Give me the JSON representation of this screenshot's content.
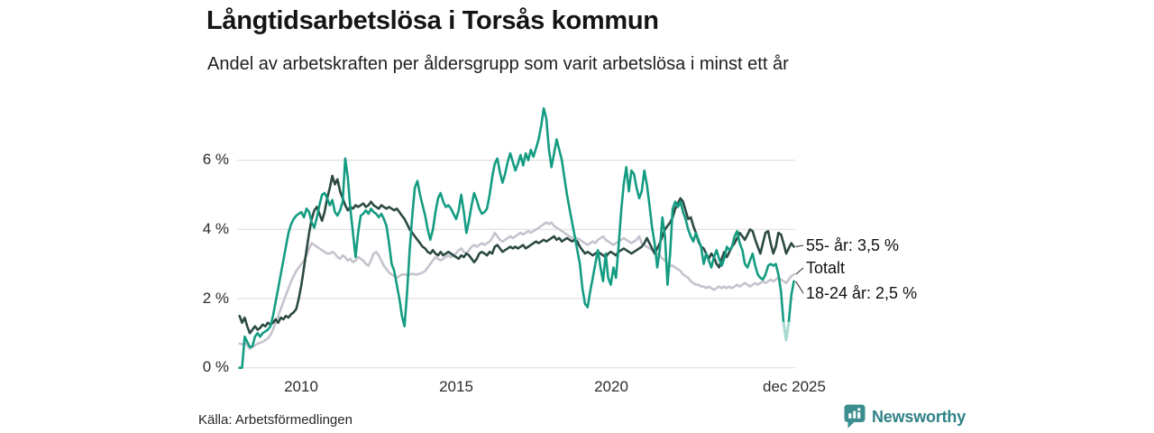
{
  "title": "Långtidsarbetslösa i Torsås kommun",
  "subtitle": "Andel av arbetskraften per åldersgrupp som varit arbetslösa i minst ett år",
  "source": "Källa: Arbetsförmedlingen",
  "branding": {
    "logo_text": "Newsworthy",
    "logo_icon": "bar-chart-speech-bubble-icon",
    "brand_color": "#2e8186",
    "icon_color": "#3b8d8f"
  },
  "colors": {
    "background": "#ffffff",
    "grid": "#e0e0e0",
    "tick_text": "#2b2b2b",
    "connector": "#4a4a4a",
    "series_55": "#2c4a43",
    "series_total": "#c5c3ce",
    "series_1824": "#149c82",
    "series_1824_recent": "#a9dbd2"
  },
  "chart_data": {
    "type": "line",
    "title": "Långtidsarbetslösa i Torsås kommun",
    "subtitle": "Andel av arbetskraften per åldersgrupp som varit arbetslösa i minst ett år",
    "x_interval": "monthly",
    "x_start_year": 2008,
    "x_end_label": "dec 2025",
    "ylim": [
      0,
      7.8
    ],
    "grid": "horizontal",
    "legend_position": "end-of-line-labels",
    "y_ticks": [
      {
        "label": "0 %",
        "value": 0
      },
      {
        "label": "2 %",
        "value": 2
      },
      {
        "label": "4 %",
        "value": 4
      },
      {
        "label": "6 %",
        "value": 6
      }
    ],
    "x_ticks": [
      {
        "label": "2010",
        "year": 2010
      },
      {
        "label": "2015",
        "year": 2015
      },
      {
        "label": "2020",
        "year": 2020
      },
      {
        "label": "dec 2025",
        "year": 2025.917
      }
    ],
    "series": [
      {
        "name": "55- år",
        "end_label": "55- år: 3,5 %",
        "end_value_text": "3,5 %",
        "color": "#2c4a43",
        "values": [
          1.5,
          1.3,
          1.45,
          1.2,
          1.0,
          1.1,
          1.2,
          1.1,
          1.15,
          1.25,
          1.2,
          1.3,
          1.25,
          1.3,
          1.4,
          1.3,
          1.45,
          1.4,
          1.5,
          1.45,
          1.55,
          1.6,
          1.7,
          2.0,
          2.4,
          2.9,
          3.4,
          3.9,
          4.3,
          4.55,
          4.65,
          4.45,
          4.25,
          4.5,
          4.9,
          5.2,
          5.55,
          5.3,
          5.45,
          5.1,
          4.9,
          4.7,
          4.55,
          4.65,
          4.6,
          4.7,
          4.65,
          4.7,
          4.75,
          4.65,
          4.7,
          4.8,
          4.7,
          4.65,
          4.6,
          4.7,
          4.65,
          4.6,
          4.65,
          4.6,
          4.55,
          4.6,
          4.5,
          4.4,
          4.3,
          4.15,
          4.0,
          3.9,
          3.8,
          3.7,
          3.6,
          3.5,
          3.45,
          3.35,
          3.3,
          3.4,
          3.3,
          3.25,
          3.35,
          3.25,
          3.3,
          3.35,
          3.3,
          3.25,
          3.2,
          3.15,
          3.25,
          3.2,
          3.3,
          3.25,
          3.15,
          3.05,
          3.15,
          3.3,
          3.35,
          3.3,
          3.25,
          3.35,
          3.3,
          3.5,
          3.55,
          3.45,
          3.35,
          3.4,
          3.45,
          3.5,
          3.45,
          3.5,
          3.45,
          3.5,
          3.55,
          3.45,
          3.5,
          3.55,
          3.6,
          3.65,
          3.6,
          3.65,
          3.7,
          3.65,
          3.7,
          3.75,
          3.8,
          3.7,
          3.75,
          3.65,
          3.7,
          3.75,
          3.7,
          3.65,
          3.7,
          3.65,
          3.5,
          3.4,
          3.3,
          3.35,
          3.3,
          3.25,
          3.3,
          3.35,
          3.3,
          3.25,
          3.2,
          3.3,
          3.35,
          3.3,
          3.25,
          3.35,
          3.4,
          3.45,
          3.4,
          3.35,
          3.3,
          3.35,
          3.4,
          3.45,
          3.5,
          3.6,
          3.75,
          3.6,
          3.45,
          3.3,
          3.45,
          3.6,
          3.8,
          4.0,
          4.1,
          4.2,
          4.35,
          4.6,
          4.75,
          4.9,
          4.8,
          4.55,
          4.3,
          4.35,
          4.1,
          3.9,
          3.65,
          3.5,
          3.45,
          3.3,
          3.15,
          3.3,
          3.2,
          3.0,
          2.9,
          3.15,
          3.35,
          3.2,
          3.35,
          3.5,
          3.6,
          3.75,
          3.9,
          3.8,
          3.7,
          3.85,
          4.0,
          3.95,
          3.7,
          3.5,
          3.3,
          3.6,
          3.9,
          3.95,
          3.6,
          3.3,
          3.5,
          3.9,
          3.85,
          3.6,
          3.3,
          3.45,
          3.6,
          3.5
        ]
      },
      {
        "name": "Totalt",
        "end_label": "Totalt",
        "end_value_text": "",
        "color": "#c5c3ce",
        "values": [
          0.7,
          0.68,
          0.72,
          0.65,
          0.55,
          0.6,
          0.65,
          0.7,
          0.72,
          0.75,
          0.8,
          0.85,
          0.95,
          1.1,
          1.3,
          1.5,
          1.7,
          1.9,
          2.1,
          2.3,
          2.5,
          2.65,
          2.8,
          2.9,
          3.0,
          3.1,
          3.25,
          3.45,
          3.6,
          3.55,
          3.5,
          3.45,
          3.4,
          3.35,
          3.3,
          3.3,
          3.35,
          3.3,
          3.2,
          3.15,
          3.25,
          3.2,
          3.1,
          3.15,
          3.05,
          3.1,
          3.2,
          3.15,
          3.1,
          3.0,
          2.95,
          3.1,
          3.3,
          3.35,
          3.25,
          3.1,
          2.95,
          2.85,
          2.75,
          2.7,
          2.65,
          2.6,
          2.65,
          2.7,
          2.7,
          2.68,
          2.7,
          2.72,
          2.7,
          2.7,
          2.72,
          2.75,
          2.8,
          2.9,
          3.0,
          3.1,
          3.2,
          3.15,
          3.1,
          3.15,
          3.2,
          3.25,
          3.2,
          3.25,
          3.3,
          3.4,
          3.45,
          3.35,
          3.3,
          3.4,
          3.5,
          3.55,
          3.5,
          3.55,
          3.6,
          3.55,
          3.6,
          3.65,
          3.75,
          3.9,
          3.8,
          3.7,
          3.65,
          3.7,
          3.75,
          3.8,
          3.75,
          3.8,
          3.85,
          3.9,
          3.85,
          3.9,
          3.95,
          3.9,
          3.95,
          4.0,
          4.05,
          4.1,
          4.15,
          4.2,
          4.15,
          4.2,
          4.1,
          4.05,
          4.0,
          3.95,
          3.9,
          3.85,
          3.8,
          3.75,
          3.7,
          3.75,
          3.7,
          3.65,
          3.6,
          3.55,
          3.6,
          3.65,
          3.6,
          3.7,
          3.75,
          3.8,
          3.7,
          3.65,
          3.6,
          3.55,
          3.6,
          3.65,
          3.7,
          3.75,
          3.7,
          3.65,
          3.6,
          3.65,
          3.7,
          3.8,
          3.6,
          3.55,
          3.5,
          3.45,
          3.4,
          3.35,
          3.3,
          3.25,
          3.15,
          3.1,
          3.0,
          2.95,
          2.95,
          2.9,
          2.85,
          2.8,
          2.7,
          2.65,
          2.6,
          2.5,
          2.45,
          2.4,
          2.4,
          2.35,
          2.35,
          2.3,
          2.35,
          2.3,
          2.25,
          2.3,
          2.35,
          2.3,
          2.35,
          2.3,
          2.35,
          2.3,
          2.35,
          2.4,
          2.35,
          2.4,
          2.45,
          2.4,
          2.35,
          2.4,
          2.45,
          2.4,
          2.45,
          2.5,
          2.45,
          2.5,
          2.55,
          2.5,
          2.55,
          2.6,
          2.55,
          2.5,
          2.45,
          2.55,
          2.65,
          2.7
        ]
      },
      {
        "name": "18-24 år",
        "end_label": "18-24 år: 2,5 %",
        "end_value_text": "2,5 %",
        "color": "#149c82",
        "recent_light": {
          "from": 211,
          "to": 213,
          "color": "#a9dbd2"
        },
        "values": [
          0.0,
          0.0,
          0.9,
          0.75,
          0.6,
          0.62,
          0.9,
          1.0,
          0.9,
          1.0,
          1.05,
          1.1,
          1.2,
          1.5,
          1.9,
          2.3,
          2.7,
          3.1,
          3.5,
          3.9,
          4.15,
          4.3,
          4.4,
          4.45,
          4.5,
          4.35,
          4.6,
          4.5,
          4.2,
          4.05,
          4.35,
          4.7,
          5.0,
          5.05,
          4.9,
          4.7,
          4.85,
          4.5,
          4.4,
          4.55,
          4.8,
          6.05,
          5.5,
          4.6,
          3.9,
          3.2,
          3.9,
          4.4,
          4.45,
          4.55,
          4.45,
          4.6,
          4.5,
          4.45,
          4.35,
          4.45,
          4.3,
          4.1,
          3.6,
          3.0,
          2.8,
          2.4,
          2.0,
          1.5,
          1.2,
          2.2,
          3.4,
          4.4,
          5.2,
          5.4,
          5.0,
          4.7,
          4.4,
          4.0,
          3.7,
          4.0,
          4.5,
          4.9,
          5.05,
          4.8,
          4.65,
          4.7,
          4.6,
          4.45,
          4.3,
          4.55,
          5.0,
          4.5,
          3.9,
          4.25,
          4.7,
          5.05,
          4.85,
          4.6,
          4.45,
          4.5,
          4.6,
          5.0,
          5.5,
          5.9,
          6.05,
          5.65,
          5.35,
          5.6,
          5.95,
          6.2,
          5.95,
          5.7,
          5.9,
          6.15,
          5.85,
          6.2,
          6.0,
          6.3,
          6.1,
          6.35,
          6.6,
          7.0,
          7.5,
          7.2,
          6.3,
          5.8,
          6.2,
          6.6,
          6.3,
          6.0,
          5.5,
          5.0,
          4.6,
          4.2,
          3.8,
          3.4,
          3.0,
          2.3,
          1.85,
          1.75,
          2.2,
          2.6,
          3.0,
          3.4,
          2.9,
          2.5,
          3.3,
          2.6,
          2.4,
          2.9,
          2.6,
          3.5,
          4.5,
          5.3,
          5.8,
          5.1,
          5.7,
          5.6,
          5.2,
          4.9,
          5.1,
          5.7,
          5.3,
          4.7,
          4.05,
          3.6,
          2.9,
          3.4,
          4.35,
          3.8,
          2.4,
          3.3,
          4.6,
          4.8,
          4.65,
          4.8,
          4.5,
          4.3,
          4.0,
          3.8,
          3.65,
          3.9,
          3.7,
          3.5,
          3.0,
          3.3,
          3.1,
          2.9,
          3.2,
          3.4,
          3.15,
          2.95,
          3.15,
          3.5,
          3.4,
          3.5,
          3.8,
          3.95,
          3.6,
          3.4,
          3.0,
          2.9,
          3.1,
          3.3,
          2.95,
          2.7,
          2.6,
          2.55,
          2.7,
          2.95,
          3.0,
          2.95,
          3.0,
          2.7,
          2.2,
          1.3,
          0.8,
          1.3,
          2.1,
          2.5
        ]
      }
    ]
  }
}
